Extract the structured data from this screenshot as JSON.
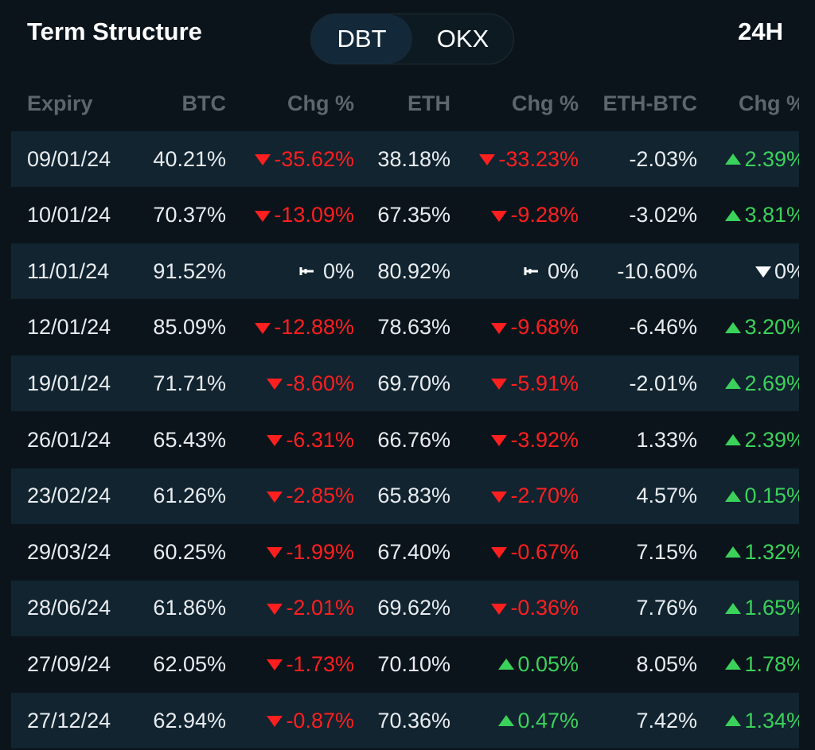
{
  "header": {
    "title": "Term Structure",
    "toggle": [
      "DBT",
      "OKX"
    ],
    "active": 0,
    "period": "24H"
  },
  "table": {
    "columns": [
      "Expiry",
      "BTC",
      "Chg %",
      "ETH",
      "Chg %",
      "ETH-BTC",
      "Chg %"
    ],
    "rows": [
      [
        "09/01/24",
        "40.21%",
        {
          "text": "-35.62%",
          "icon": "down"
        },
        "38.18%",
        {
          "text": "-33.23%",
          "icon": "down"
        },
        "-2.03%",
        {
          "text": "2.39%",
          "icon": "up"
        }
      ],
      [
        "10/01/24",
        "70.37%",
        {
          "text": "-13.09%",
          "icon": "down"
        },
        "67.35%",
        {
          "text": "-9.28%",
          "icon": "down"
        },
        "-3.02%",
        {
          "text": "3.81%",
          "icon": "up"
        }
      ],
      [
        "11/01/24",
        "91.52%",
        {
          "text": "0%",
          "icon": "flat"
        },
        "80.92%",
        {
          "text": "0%",
          "icon": "flat"
        },
        "-10.60%",
        {
          "text": "0%",
          "icon": "neutral-down"
        }
      ],
      [
        "12/01/24",
        "85.09%",
        {
          "text": "-12.88%",
          "icon": "down"
        },
        "78.63%",
        {
          "text": "-9.68%",
          "icon": "down"
        },
        "-6.46%",
        {
          "text": "3.20%",
          "icon": "up"
        }
      ],
      [
        "19/01/24",
        "71.71%",
        {
          "text": "-8.60%",
          "icon": "down"
        },
        "69.70%",
        {
          "text": "-5.91%",
          "icon": "down"
        },
        "-2.01%",
        {
          "text": "2.69%",
          "icon": "up"
        }
      ],
      [
        "26/01/24",
        "65.43%",
        {
          "text": "-6.31%",
          "icon": "down"
        },
        "66.76%",
        {
          "text": "-3.92%",
          "icon": "down"
        },
        "1.33%",
        {
          "text": "2.39%",
          "icon": "up"
        }
      ],
      [
        "23/02/24",
        "61.26%",
        {
          "text": "-2.85%",
          "icon": "down"
        },
        "65.83%",
        {
          "text": "-2.70%",
          "icon": "down"
        },
        "4.57%",
        {
          "text": "0.15%",
          "icon": "up"
        }
      ],
      [
        "29/03/24",
        "60.25%",
        {
          "text": "-1.99%",
          "icon": "down"
        },
        "67.40%",
        {
          "text": "-0.67%",
          "icon": "down"
        },
        "7.15%",
        {
          "text": "1.32%",
          "icon": "up"
        }
      ],
      [
        "28/06/24",
        "61.86%",
        {
          "text": "-2.01%",
          "icon": "down"
        },
        "69.62%",
        {
          "text": "-0.36%",
          "icon": "down"
        },
        "7.76%",
        {
          "text": "1.65%",
          "icon": "up"
        }
      ],
      [
        "27/09/24",
        "62.05%",
        {
          "text": "-1.73%",
          "icon": "down"
        },
        "70.10%",
        {
          "text": "0.05%",
          "icon": "up"
        },
        "8.05%",
        {
          "text": "1.78%",
          "icon": "up"
        }
      ],
      [
        "27/12/24",
        "62.94%",
        {
          "text": "-0.87%",
          "icon": "down"
        },
        "70.36%",
        {
          "text": "0.47%",
          "icon": "up"
        },
        "7.42%",
        {
          "text": "1.34%",
          "icon": "up"
        }
      ]
    ]
  }
}
